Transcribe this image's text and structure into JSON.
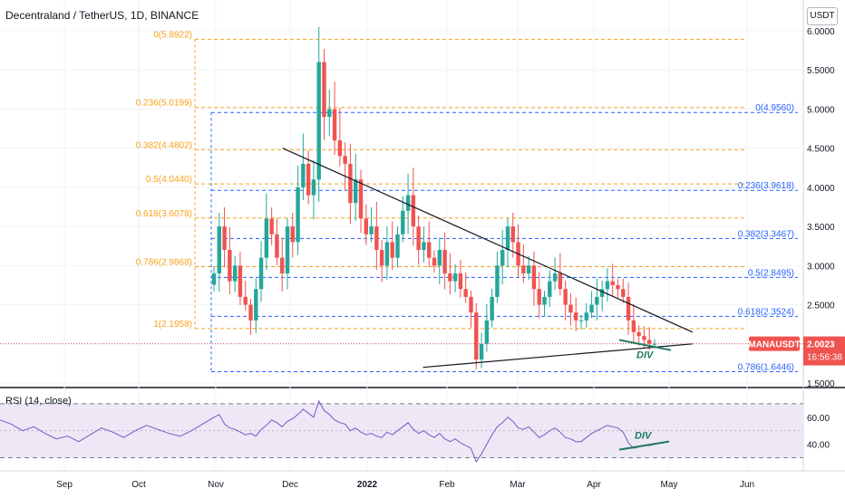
{
  "header": {
    "title": "Decentraland / TetherUS, 1D, BINANCE",
    "currency": "USDT"
  },
  "colors": {
    "up": "#26a69a",
    "down": "#ef5350",
    "fib_left": "#f7a21b",
    "fib_right": "#2962ff",
    "rsi_line": "#7e57c2",
    "rsi_band": "#ede7f6",
    "trendline": "#131722",
    "div_green": "#1e7b61",
    "price_tag": "#ef5350",
    "rsi_level": "#787b86"
  },
  "chart_data": [
    {
      "type": "candlestick",
      "title": "Decentraland / TetherUS, 1D, BINANCE",
      "symbol": "MANAUSDT",
      "last_price": "2.0023",
      "countdown": "16:56:38",
      "x_ticks": [
        "Sep",
        "Oct",
        "Nov",
        "Dec",
        "2022",
        "Feb",
        "Mar",
        "Apr",
        "May",
        "Jun"
      ],
      "y_ticks": [
        "6.0000",
        "5.5000",
        "5.0000",
        "4.5000",
        "4.0000",
        "3.5000",
        "3.0000",
        "2.5000",
        "2.0000",
        "1.5000"
      ],
      "ylim": [
        1.5,
        6.0
      ],
      "fib_left": [
        {
          "label": "0(5.8922)",
          "value": 5.8922
        },
        {
          "label": "0.236(5.0199)",
          "value": 5.0199
        },
        {
          "label": "0.382(4.4802)",
          "value": 4.4802
        },
        {
          "label": "0.5(4.0440)",
          "value": 4.044
        },
        {
          "label": "0.618(3.6078)",
          "value": 3.6078
        },
        {
          "label": "0.786(2.9868)",
          "value": 2.9868
        },
        {
          "label": "1(2.1958)",
          "value": 2.1958
        }
      ],
      "fib_right": [
        {
          "label": "0(4.9560)",
          "value": 4.956
        },
        {
          "label": "0.236(3.9618)",
          "value": 3.9618
        },
        {
          "label": "0.382(3.3467)",
          "value": 3.3467
        },
        {
          "label": "0.5(2.8495)",
          "value": 2.8495
        },
        {
          "label": "0.618(2.3524)",
          "value": 2.3524
        },
        {
          "label": "0.786(1.6446)",
          "value": 1.6446
        }
      ],
      "trendlines": [
        {
          "from": [
            "2021-11-28",
            4.5
          ],
          "to": [
            "2022-05-10",
            2.15
          ]
        },
        {
          "from": [
            "2022-01-22",
            1.7
          ],
          "to": [
            "2022-05-10",
            2.0
          ]
        }
      ],
      "annotation": "DIV",
      "closes": [
        2.9,
        3.5,
        3.2,
        2.8,
        3.0,
        2.6,
        2.5,
        2.3,
        2.7,
        3.1,
        3.6,
        3.4,
        3.1,
        2.9,
        3.5,
        3.3,
        4.0,
        4.3,
        3.9,
        4.1,
        5.6,
        4.9,
        5.0,
        4.6,
        4.4,
        4.3,
        3.8,
        4.1,
        3.6,
        3.4,
        3.5,
        3.2,
        3.0,
        3.3,
        3.1,
        3.4,
        3.7,
        3.9,
        3.5,
        3.2,
        3.3,
        3.1,
        3.0,
        3.2,
        2.9,
        2.8,
        2.9,
        2.7,
        2.6,
        2.4,
        1.8,
        2.0,
        2.3,
        2.6,
        3.0,
        3.2,
        3.5,
        3.3,
        3.0,
        2.9,
        3.0,
        2.7,
        2.5,
        2.6,
        2.8,
        2.9,
        2.7,
        2.5,
        2.4,
        2.3,
        2.3,
        2.4,
        2.5,
        2.6,
        2.7,
        2.8,
        2.75,
        2.7,
        2.6,
        2.3,
        2.15,
        2.1,
        2.05,
        2.0,
        2.0
      ]
    },
    {
      "type": "line",
      "title": "RSI (14, close)",
      "y_ticks": [
        "60.00",
        "40.00"
      ],
      "ylim": [
        25,
        80
      ],
      "levels": [
        70,
        30
      ],
      "annotation": "DIV",
      "values": [
        60,
        62,
        55,
        52,
        51,
        49,
        47,
        48,
        46,
        51,
        54,
        58,
        56,
        53,
        57,
        59,
        62,
        66,
        63,
        60,
        72,
        65,
        62,
        58,
        56,
        55,
        50,
        52,
        49,
        47,
        48,
        46,
        45,
        49,
        47,
        50,
        53,
        56,
        51,
        48,
        50,
        47,
        45,
        48,
        44,
        42,
        44,
        41,
        39,
        37,
        27,
        33,
        40,
        47,
        53,
        56,
        60,
        57,
        52,
        51,
        53,
        49,
        45,
        47,
        50,
        52,
        49,
        45,
        44,
        42,
        42,
        45,
        48,
        50,
        52,
        54,
        53,
        52,
        49,
        41,
        37,
        38,
        39,
        39,
        40
      ]
    }
  ]
}
